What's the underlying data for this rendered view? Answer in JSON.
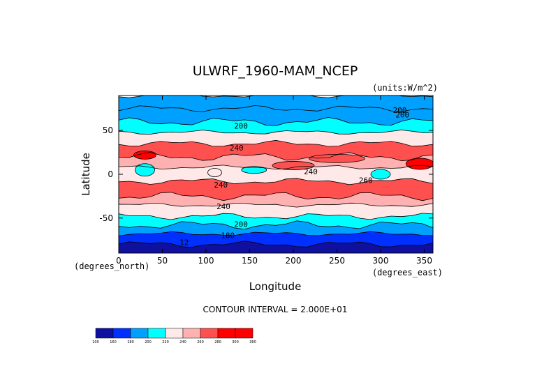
{
  "chart_data": {
    "type": "heatmap",
    "title": "ULWRF_1960-MAM_NCEP",
    "units": "(units:W/m^2)",
    "xlabel": "Longitude",
    "ylabel": "Latitude",
    "x_unit_label": "(degrees_east)",
    "y_unit_label": "(degrees_north)",
    "xlim": [
      0,
      360
    ],
    "ylim": [
      -90,
      90
    ],
    "x_ticks": [
      0,
      50,
      100,
      150,
      200,
      250,
      300,
      350
    ],
    "y_ticks": [
      -50,
      0,
      50
    ],
    "contour_interval_text": "CONTOUR INTERVAL = 2.000E+01",
    "contour_labels": [
      {
        "text": "200",
        "lon": 140,
        "lat": 52
      },
      {
        "text": "200",
        "lon": 325,
        "lat": 65
      },
      {
        "text": "200",
        "lon": 322,
        "lat": 70
      },
      {
        "text": "240",
        "lon": 135,
        "lat": 27
      },
      {
        "text": "240",
        "lon": 220,
        "lat": 0
      },
      {
        "text": "240",
        "lon": 117,
        "lat": -15
      },
      {
        "text": "240",
        "lon": 120,
        "lat": -40
      },
      {
        "text": "260",
        "lon": 283,
        "lat": -10
      },
      {
        "text": "200",
        "lon": 140,
        "lat": -60
      },
      {
        "text": "180",
        "lon": 125,
        "lat": -73
      },
      {
        "text": "12",
        "lon": 75,
        "lat": -81
      }
    ],
    "legend_bounds": [
      "100",
      "160",
      "180",
      "200",
      "220",
      "240",
      "260",
      "280",
      "300",
      "360"
    ],
    "legend_colors": [
      "#1010a0",
      "#0030ff",
      "#00a0ff",
      "#00ffff",
      "#ffe8e8",
      "#ffb0b0",
      "#ff5050",
      "#ff0000",
      "#ff0000"
    ],
    "field_bands": [
      {
        "lat_from": 90,
        "lat_to": 75,
        "level": 2
      },
      {
        "lat_from": 75,
        "lat_to": 60,
        "level": 2
      },
      {
        "lat_from": 60,
        "lat_to": 48,
        "level": 3
      },
      {
        "lat_from": 48,
        "lat_to": 35,
        "level": 4
      },
      {
        "lat_from": 35,
        "lat_to": 20,
        "level": 6
      },
      {
        "lat_from": 20,
        "lat_to": 8,
        "level": 5
      },
      {
        "lat_from": 8,
        "lat_to": -8,
        "level": 4
      },
      {
        "lat_from": -8,
        "lat_to": -25,
        "level": 6
      },
      {
        "lat_from": -25,
        "lat_to": -35,
        "level": 5
      },
      {
        "lat_from": -35,
        "lat_to": -48,
        "level": 4
      },
      {
        "lat_from": -48,
        "lat_to": -58,
        "level": 3
      },
      {
        "lat_from": -58,
        "lat_to": -68,
        "level": 2
      },
      {
        "lat_from": -68,
        "lat_to": -80,
        "level": 1
      },
      {
        "lat_from": -80,
        "lat_to": -90,
        "level": 0
      }
    ]
  }
}
